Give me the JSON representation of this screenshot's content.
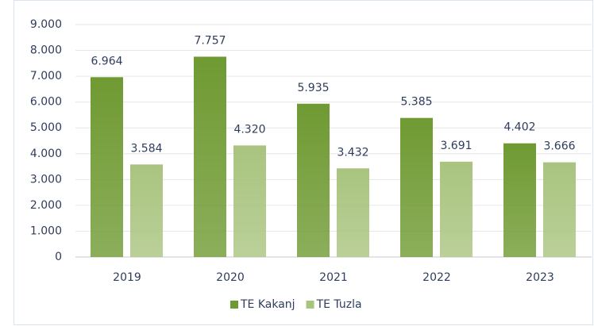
{
  "chart_data": {
    "type": "bar",
    "categories": [
      "2019",
      "2020",
      "2021",
      "2022",
      "2023"
    ],
    "series": [
      {
        "name": "TE Kakanj",
        "color": "#6f9a32",
        "values": [
          6964,
          7757,
          5935,
          5385,
          4402
        ],
        "value_labels": [
          "6.964",
          "7.757",
          "5.935",
          "5.385",
          "4.402"
        ]
      },
      {
        "name": "TE Tuzla",
        "color": "#a9c47f",
        "values": [
          3584,
          4320,
          3432,
          3691,
          3666
        ],
        "value_labels": [
          "3.584",
          "4.320",
          "3.432",
          "3.691",
          "3.666"
        ]
      }
    ],
    "ylim": [
      0,
      9000
    ],
    "yticks": [
      0,
      {
        "value": 1000,
        "label": "1.000"
      },
      {
        "value": 2000,
        "label": "2.000"
      },
      {
        "value": 3000,
        "label": "3.000"
      },
      {
        "value": 4000,
        "label": "4.000"
      },
      {
        "value": 5000,
        "label": "5.000"
      },
      {
        "value": 6000,
        "label": "6.000"
      },
      {
        "value": 7000,
        "label": "7.000"
      },
      {
        "value": 8000,
        "label": "8.000"
      },
      {
        "value": 9000,
        "label": "9.000"
      }
    ],
    "grid": true,
    "legend": "bottom"
  }
}
